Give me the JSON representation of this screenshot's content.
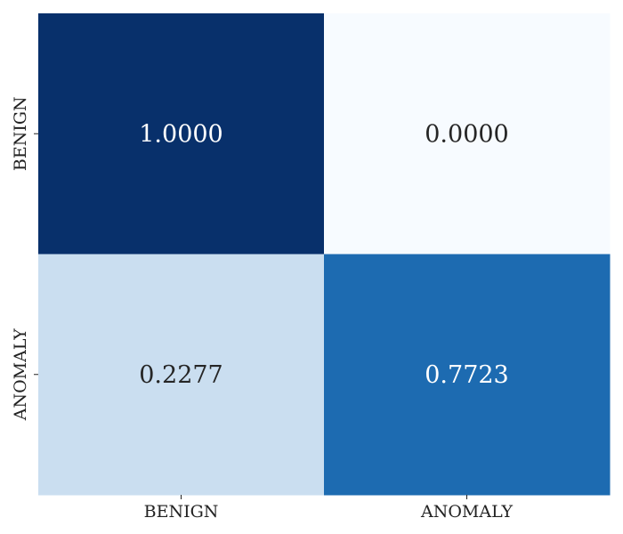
{
  "chart_data": {
    "type": "heatmap",
    "title": "",
    "xlabel": "",
    "ylabel": "",
    "x_categories": [
      "BENIGN",
      "ANOMALY"
    ],
    "y_categories": [
      "BENIGN",
      "ANOMALY"
    ],
    "values": [
      [
        1.0,
        0.0
      ],
      [
        0.2277,
        0.7723
      ]
    ],
    "value_labels": [
      [
        "1.0000",
        "0.0000"
      ],
      [
        "0.2277",
        "0.7723"
      ]
    ],
    "colormap": "Blues",
    "value_range": [
      0,
      1
    ],
    "colorbar": false,
    "grid": false
  }
}
